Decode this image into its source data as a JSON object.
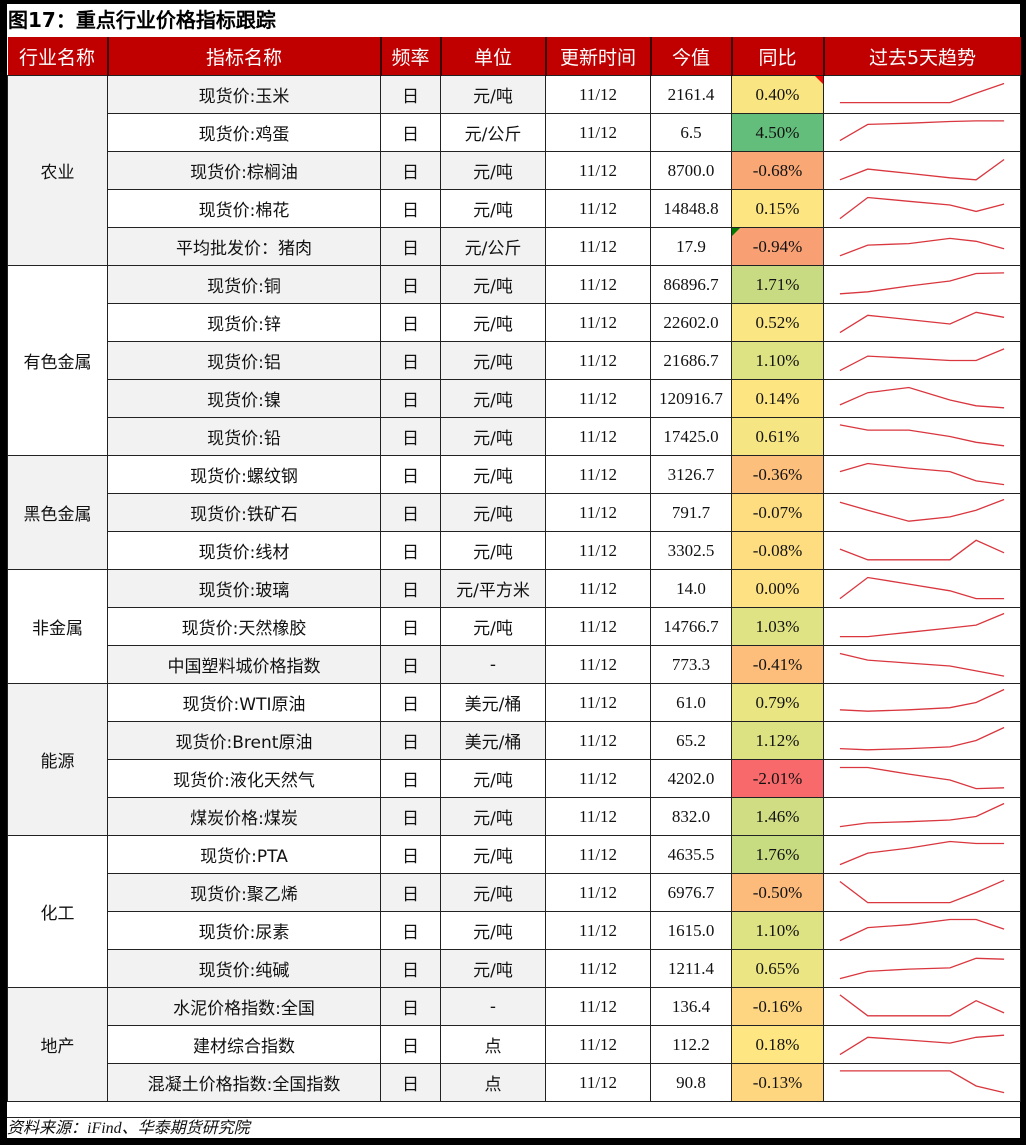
{
  "title": "图17：重点行业价格指标跟踪",
  "headers": [
    "行业名称",
    "指标名称",
    "频率",
    "单位",
    "更新时间",
    "今值",
    "同比",
    "过去5天趋势"
  ],
  "groups": [
    {
      "name": "农业",
      "start": 0,
      "span": 5,
      "shade": true
    },
    {
      "name": "有色金属",
      "start": 5,
      "span": 5,
      "shade": false
    },
    {
      "name": "黑色金属",
      "start": 10,
      "span": 3,
      "shade": true
    },
    {
      "name": "非金属",
      "start": 13,
      "span": 3,
      "shade": false
    },
    {
      "name": "能源",
      "start": 16,
      "span": 4,
      "shade": true
    },
    {
      "name": "化工",
      "start": 20,
      "span": 4,
      "shade": false
    },
    {
      "name": "地产",
      "start": 24,
      "span": 3,
      "shade": true
    }
  ],
  "rows": [
    {
      "name": "现货价:玉米",
      "freq": "日",
      "unit": "元/吨",
      "date": "11/12",
      "value": "2161.4",
      "yoy": "0.40%",
      "yoy_color": "#FAE583",
      "marker": "red",
      "shade": true,
      "trend": [
        0.78,
        0.78,
        0.78,
        0.78,
        0.45,
        0.12
      ]
    },
    {
      "name": "现货价:鸡蛋",
      "freq": "日",
      "unit": "元/公斤",
      "date": "11/12",
      "value": "6.5",
      "yoy": "4.50%",
      "yoy_color": "#63BE7B",
      "marker": "",
      "shade": false,
      "trend": [
        0.78,
        0.22,
        0.18,
        0.12,
        0.1,
        0.1
      ]
    },
    {
      "name": "现货价:棕榈油",
      "freq": "日",
      "unit": "元/吨",
      "date": "11/12",
      "value": "8700.0",
      "yoy": "-0.68%",
      "yoy_color": "#F9A875",
      "marker": "",
      "shade": true,
      "trend": [
        0.82,
        0.45,
        0.6,
        0.75,
        0.82,
        0.12
      ]
    },
    {
      "name": "现货价:棉花",
      "freq": "日",
      "unit": "元/吨",
      "date": "11/12",
      "value": "14848.8",
      "yoy": "0.15%",
      "yoy_color": "#FDE582",
      "marker": "",
      "shade": false,
      "trend": [
        0.85,
        0.12,
        0.25,
        0.38,
        0.6,
        0.35
      ]
    },
    {
      "name": "平均批发价：猪肉",
      "freq": "日",
      "unit": "元/公斤",
      "date": "11/12",
      "value": "17.9",
      "yoy": "-0.94%",
      "yoy_color": "#F8A073",
      "marker": "green",
      "shade": true,
      "trend": [
        0.82,
        0.45,
        0.4,
        0.22,
        0.32,
        0.58
      ]
    },
    {
      "name": "现货价:铜",
      "freq": "日",
      "unit": "元/吨",
      "date": "11/12",
      "value": "86896.7",
      "yoy": "1.71%",
      "yoy_color": "#C9DB82",
      "marker": "",
      "shade": true,
      "trend": [
        0.82,
        0.75,
        0.55,
        0.38,
        0.12,
        0.1
      ]
    },
    {
      "name": "现货价:锌",
      "freq": "日",
      "unit": "元/吨",
      "date": "11/12",
      "value": "22602.0",
      "yoy": "0.52%",
      "yoy_color": "#FAE683",
      "marker": "",
      "shade": false,
      "trend": [
        0.85,
        0.25,
        0.4,
        0.55,
        0.15,
        0.32
      ]
    },
    {
      "name": "现货价:铝",
      "freq": "日",
      "unit": "元/吨",
      "date": "11/12",
      "value": "21686.7",
      "yoy": "1.10%",
      "yoy_color": "#DDE282",
      "marker": "",
      "shade": true,
      "trend": [
        0.85,
        0.35,
        0.42,
        0.5,
        0.5,
        0.1
      ]
    },
    {
      "name": "现货价:镍",
      "freq": "日",
      "unit": "元/吨",
      "date": "11/12",
      "value": "120916.7",
      "yoy": "0.14%",
      "yoy_color": "#FDE582",
      "marker": "",
      "shade": true,
      "trend": [
        0.72,
        0.3,
        0.12,
        0.55,
        0.75,
        0.82
      ]
    },
    {
      "name": "现货价:铅",
      "freq": "日",
      "unit": "元/吨",
      "date": "11/12",
      "value": "17425.0",
      "yoy": "0.61%",
      "yoy_color": "#F6E583",
      "marker": "",
      "shade": true,
      "trend": [
        0.1,
        0.28,
        0.28,
        0.5,
        0.7,
        0.82
      ]
    },
    {
      "name": "现货价:螺纹钢",
      "freq": "日",
      "unit": "元/吨",
      "date": "11/12",
      "value": "3126.7",
      "yoy": "-0.36%",
      "yoy_color": "#FDC07C",
      "marker": "",
      "shade": false,
      "trend": [
        0.4,
        0.12,
        0.28,
        0.4,
        0.72,
        0.85
      ]
    },
    {
      "name": "现货价:铁矿石",
      "freq": "日",
      "unit": "元/吨",
      "date": "11/12",
      "value": "791.7",
      "yoy": "-0.07%",
      "yoy_color": "#FEDD81",
      "marker": "",
      "shade": true,
      "trend": [
        0.15,
        0.42,
        0.8,
        0.65,
        0.42,
        0.05
      ]
    },
    {
      "name": "现货价:线材",
      "freq": "日",
      "unit": "元/吨",
      "date": "11/12",
      "value": "3302.5",
      "yoy": "-0.08%",
      "yoy_color": "#FEDD81",
      "marker": "",
      "shade": false,
      "trend": [
        0.45,
        0.82,
        0.82,
        0.82,
        0.15,
        0.58
      ]
    },
    {
      "name": "现货价:玻璃",
      "freq": "日",
      "unit": "元/平方米",
      "date": "11/12",
      "value": "14.0",
      "yoy": "0.00%",
      "yoy_color": "#FEE182",
      "marker": "",
      "shade": true,
      "trend": [
        0.85,
        0.12,
        0.35,
        0.58,
        0.85,
        0.85
      ]
    },
    {
      "name": "现货价:天然橡胶",
      "freq": "日",
      "unit": "元/吨",
      "date": "11/12",
      "value": "14766.7",
      "yoy": "1.03%",
      "yoy_color": "#E0E383",
      "marker": "",
      "shade": false,
      "trend": [
        0.85,
        0.85,
        0.7,
        0.55,
        0.45,
        0.05
      ]
    },
    {
      "name": "中国塑料城价格指数",
      "freq": "日",
      "unit": "-",
      "date": "11/12",
      "value": "773.3",
      "yoy": "-0.41%",
      "yoy_color": "#FDBE7C",
      "marker": "",
      "shade": true,
      "trend": [
        0.12,
        0.35,
        0.45,
        0.55,
        0.72,
        0.9
      ]
    },
    {
      "name": "现货价:WTI原油",
      "freq": "日",
      "unit": "美元/桶",
      "date": "11/12",
      "value": "61.0",
      "yoy": "0.79%",
      "yoy_color": "#E9E583",
      "marker": "",
      "shade": false,
      "trend": [
        0.75,
        0.8,
        0.75,
        0.68,
        0.5,
        0.05
      ]
    },
    {
      "name": "现货价:Brent原油",
      "freq": "日",
      "unit": "美元/桶",
      "date": "11/12",
      "value": "65.2",
      "yoy": "1.12%",
      "yoy_color": "#DCE282",
      "marker": "",
      "shade": true,
      "trend": [
        0.78,
        0.82,
        0.78,
        0.72,
        0.5,
        0.05
      ]
    },
    {
      "name": "现货价:液化天然气",
      "freq": "日",
      "unit": "元/吨",
      "date": "11/12",
      "value": "4202.0",
      "yoy": "-2.01%",
      "yoy_color": "#F8696B",
      "marker": "",
      "shade": false,
      "trend": [
        0.12,
        0.12,
        0.35,
        0.55,
        0.85,
        0.82
      ]
    },
    {
      "name": "煤炭价格:煤炭",
      "freq": "日",
      "unit": "元/吨",
      "date": "11/12",
      "value": "832.0",
      "yoy": "1.46%",
      "yoy_color": "#D0DD82",
      "marker": "",
      "shade": true,
      "trend": [
        0.85,
        0.72,
        0.68,
        0.62,
        0.5,
        0.05
      ]
    },
    {
      "name": "现货价:PTA",
      "freq": "日",
      "unit": "元/吨",
      "date": "11/12",
      "value": "4635.5",
      "yoy": "1.76%",
      "yoy_color": "#C7DB81",
      "marker": "",
      "shade": false,
      "trend": [
        0.85,
        0.45,
        0.28,
        0.05,
        0.12,
        0.12
      ]
    },
    {
      "name": "现货价:聚乙烯",
      "freq": "日",
      "unit": "元/吨",
      "date": "11/12",
      "value": "6976.7",
      "yoy": "-0.50%",
      "yoy_color": "#FCBA7B",
      "marker": "",
      "shade": true,
      "trend": [
        0.12,
        0.85,
        0.85,
        0.85,
        0.5,
        0.08
      ]
    },
    {
      "name": "现货价:尿素",
      "freq": "日",
      "unit": "元/吨",
      "date": "11/12",
      "value": "1615.0",
      "yoy": "1.10%",
      "yoy_color": "#DDE282",
      "marker": "",
      "shade": false,
      "trend": [
        0.85,
        0.4,
        0.3,
        0.12,
        0.12,
        0.45
      ]
    },
    {
      "name": "现货价:纯碱",
      "freq": "日",
      "unit": "元/吨",
      "date": "11/12",
      "value": "1211.4",
      "yoy": "0.65%",
      "yoy_color": "#ECE583",
      "marker": "",
      "shade": true,
      "trend": [
        0.85,
        0.6,
        0.52,
        0.48,
        0.15,
        0.18
      ]
    },
    {
      "name": "水泥价格指数:全国",
      "freq": "日",
      "unit": "-",
      "date": "11/12",
      "value": "136.4",
      "yoy": "-0.16%",
      "yoy_color": "#FED580",
      "marker": "",
      "shade": true,
      "trend": [
        0.1,
        0.82,
        0.82,
        0.82,
        0.3,
        0.72
      ]
    },
    {
      "name": "建材综合指数",
      "freq": "日",
      "unit": "点",
      "date": "11/12",
      "value": "112.2",
      "yoy": "0.18%",
      "yoy_color": "#FEE783",
      "marker": "",
      "shade": false,
      "trend": [
        0.85,
        0.25,
        0.35,
        0.45,
        0.25,
        0.18
      ]
    },
    {
      "name": "混凝土价格指数:全国指数",
      "freq": "日",
      "unit": "点",
      "date": "11/12",
      "value": "90.8",
      "yoy": "-0.13%",
      "yoy_color": "#FED680",
      "marker": "",
      "shade": true,
      "trend": [
        0.1,
        0.1,
        0.1,
        0.1,
        0.62,
        0.85
      ]
    }
  ],
  "sparkline_color": "#D9363E",
  "header_color": "#C00000",
  "source": "资料来源：iFind、华泰期货研究院"
}
